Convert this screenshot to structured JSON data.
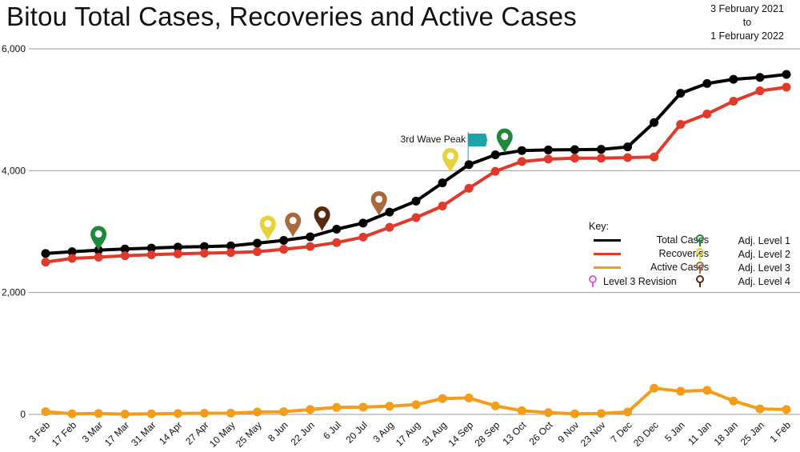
{
  "header": {
    "title": "Bitou Total Cases, Recoveries and Active Cases",
    "date_from": "3 February 2021",
    "date_to_word": "to",
    "date_to": "1 February 2022"
  },
  "annotation": {
    "peak_label": "3rd Wave Peak",
    "peak_flag_color": "#1fa3a8"
  },
  "key": {
    "title": "Key:",
    "series": [
      {
        "label": "Total Cases",
        "color": "#000000"
      },
      {
        "label": "Recoveries",
        "color": "#e03a2b"
      },
      {
        "label": "Active Cases",
        "color": "#f59c1a"
      }
    ],
    "revision": {
      "label": "Level 3 Revision",
      "color": "#e25fd1"
    },
    "levels": [
      {
        "label": "Adj. Level 1",
        "color": "#1d8a3a"
      },
      {
        "label": "Adj. Level 2",
        "color": "#e6d23a"
      },
      {
        "label": "Adj. Level 3",
        "color": "#a8693b"
      },
      {
        "label": "Adj. Level 4",
        "color": "#5a2a10"
      }
    ]
  },
  "chart_data": {
    "type": "line",
    "categories": [
      "3 Feb",
      "17 Feb",
      "3 Mar",
      "17 Mar",
      "31 Mar",
      "14 Apr",
      "27 Apr",
      "10 May",
      "25 May",
      "8 Jun",
      "22 Jun",
      "6 Jul",
      "20 Jul",
      "3 Aug",
      "17 Aug",
      "31 Aug",
      "14 Sep",
      "28 Sep",
      "13 Oct",
      "26 Oct",
      "9 Nov",
      "23 Nov",
      "7 Dec",
      "20 Dec",
      "5 Jan",
      "11 Jan",
      "18 Jan",
      "25 Jan",
      "1 Feb"
    ],
    "ylim": [
      0,
      6000
    ],
    "yticks": [
      "0",
      "2,000",
      "4,000",
      "6,000"
    ],
    "yticks_values": [
      0,
      2000,
      4000,
      6000
    ],
    "grid": true,
    "series": [
      {
        "name": "Total Cases",
        "color": "#000000",
        "values": [
          2640,
          2670,
          2695,
          2715,
          2730,
          2745,
          2755,
          2765,
          2810,
          2855,
          2915,
          3040,
          3140,
          3320,
          3500,
          3800,
          4100,
          4260,
          4330,
          4340,
          4345,
          4350,
          4390,
          4790,
          5270,
          5430,
          5500,
          5530,
          5580
        ]
      },
      {
        "name": "Recoveries",
        "color": "#e03a2b",
        "values": [
          2500,
          2560,
          2580,
          2605,
          2620,
          2635,
          2645,
          2655,
          2670,
          2710,
          2755,
          2820,
          2910,
          3070,
          3230,
          3420,
          3710,
          3990,
          4150,
          4190,
          4205,
          4205,
          4215,
          4225,
          4760,
          4930,
          5140,
          5310,
          5370
        ]
      },
      {
        "name": "Active Cases",
        "color": "#f59c1a",
        "values": [
          45,
          10,
          15,
          5,
          10,
          15,
          20,
          20,
          40,
          45,
          80,
          115,
          120,
          135,
          160,
          260,
          270,
          140,
          60,
          30,
          10,
          15,
          40,
          430,
          380,
          395,
          220,
          90,
          80
        ]
      }
    ],
    "markers": [
      {
        "level": 1,
        "x_index": 2.0,
        "value": 2870,
        "color": "#1d8a3a"
      },
      {
        "level": 2,
        "x_index": 8.4,
        "value": 3040,
        "color": "#e6d23a"
      },
      {
        "level": 3,
        "x_index": 9.35,
        "value": 3090,
        "color": "#a8693b"
      },
      {
        "level": 4,
        "x_index": 10.45,
        "value": 3190,
        "color": "#5a2a10"
      },
      {
        "level": 3,
        "x_index": 12.6,
        "value": 3440,
        "color": "#a8693b"
      },
      {
        "level": 2,
        "x_index": 15.3,
        "value": 4150,
        "color": "#e6d23a"
      },
      {
        "level": 1,
        "x_index": 17.35,
        "value": 4470,
        "color": "#1d8a3a"
      }
    ],
    "peak_x_index": 16.0,
    "peak_value": 4100
  }
}
